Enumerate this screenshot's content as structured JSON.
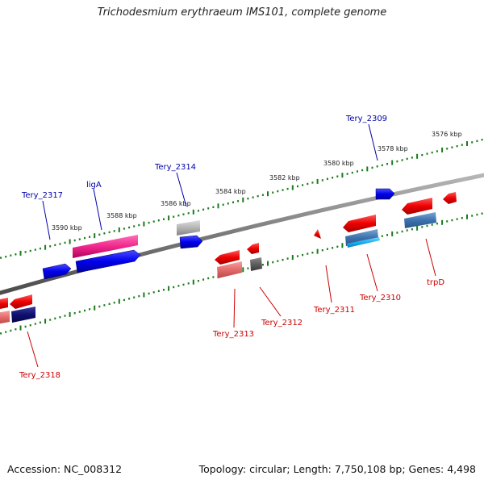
{
  "title": "Trichodesmium erythraeum IMS101, complete genome",
  "footer": {
    "accession": "Accession: NC_008312",
    "summary": "Topology: circular; Length: 7,750,108 bp; Genes: 4,498"
  },
  "colors": {
    "backbone": "#808080",
    "tick": "#1a7a1a",
    "forward_label": "#0000aa",
    "reverse_label": "#cc0000"
  },
  "scale_labels": [
    "3576 kbp",
    "3578 kbp",
    "3580 kbp",
    "3582 kbp",
    "3584 kbp",
    "3586 kbp",
    "3588 kbp",
    "3590 kbp"
  ],
  "genes": [
    {
      "name": "Tery_2309",
      "strand": "forward"
    },
    {
      "name": "Tery_2314",
      "strand": "forward"
    },
    {
      "name": "ligA",
      "strand": "forward"
    },
    {
      "name": "Tery_2317",
      "strand": "forward"
    },
    {
      "name": "trpD",
      "strand": "reverse"
    },
    {
      "name": "Tery_2310",
      "strand": "reverse"
    },
    {
      "name": "Tery_2311",
      "strand": "reverse"
    },
    {
      "name": "Tery_2312",
      "strand": "reverse"
    },
    {
      "name": "Tery_2313",
      "strand": "reverse"
    },
    {
      "name": "Tery_2318",
      "strand": "reverse"
    }
  ]
}
